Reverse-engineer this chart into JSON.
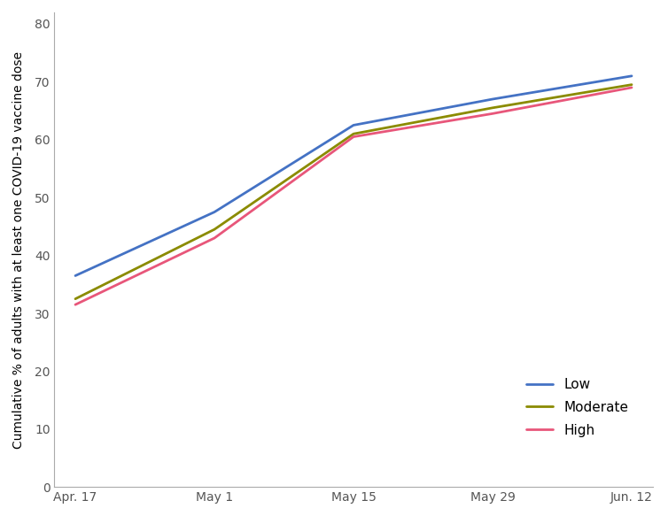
{
  "x_labels": [
    "Apr. 17",
    "May 1",
    "May 15",
    "May 29",
    "Jun. 12"
  ],
  "x_positions": [
    0,
    1,
    2,
    3,
    4
  ],
  "series": {
    "Low": {
      "values": [
        36.5,
        47.5,
        62.5,
        67.0,
        71.0
      ],
      "color": "#4472C4"
    },
    "Moderate": {
      "values": [
        32.5,
        44.5,
        61.0,
        65.5,
        69.5
      ],
      "color": "#8B8B00"
    },
    "High": {
      "values": [
        31.5,
        43.0,
        60.5,
        64.5,
        69.0
      ],
      "color": "#E8567A"
    }
  },
  "ylabel": "Cumulative % of adults with at least one COVID-19 vaccine dose",
  "ylim": [
    0,
    82
  ],
  "yticks": [
    0,
    10,
    20,
    30,
    40,
    50,
    60,
    70,
    80
  ],
  "legend_labels": [
    "Low",
    "Moderate",
    "High"
  ],
  "legend_colors": [
    "#4472C4",
    "#8B8B00",
    "#E8567A"
  ],
  "background_color": "#FFFFFF",
  "line_width": 2.0,
  "ylabel_fontsize": 10,
  "tick_fontsize": 10,
  "legend_fontsize": 11
}
